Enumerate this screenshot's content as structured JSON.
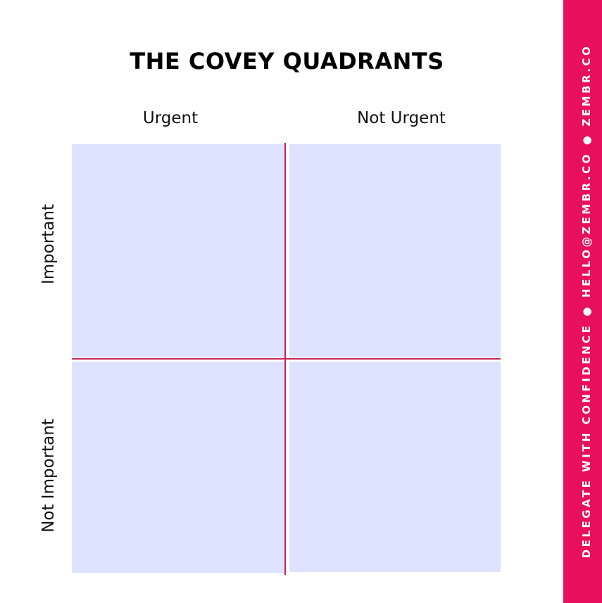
{
  "diagram": {
    "title": "THE COVEY QUADRANTS",
    "columns": [
      "Urgent",
      "Not Urgent"
    ],
    "rows": [
      "Important",
      "Not Important"
    ],
    "quadrant_color": "#dde3ff",
    "divider_color": "#c8245a"
  },
  "sidebar": {
    "text_1": "DELEGATE WITH CONFIDENCE",
    "separator_1": "●",
    "text_2": "HELLO@ZEMBR.CO",
    "separator_2": "●",
    "text_3": "ZEMBR.CO",
    "color": "#e8105a"
  }
}
